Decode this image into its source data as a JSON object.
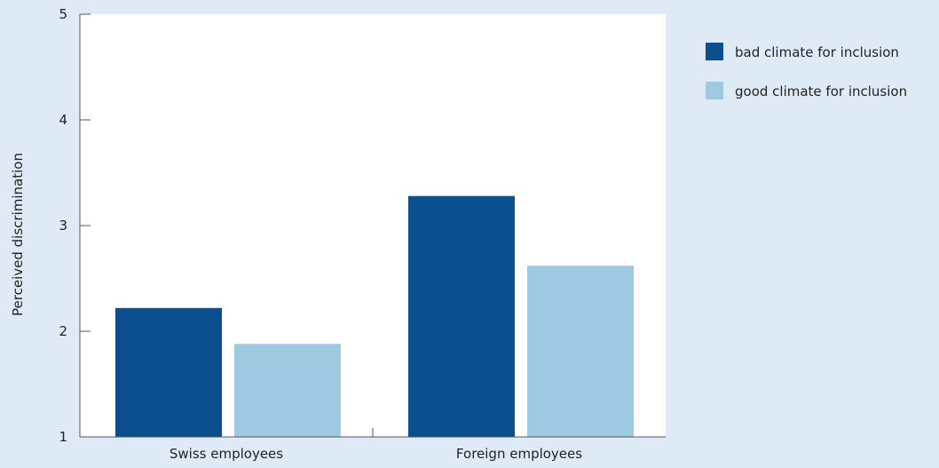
{
  "chart_data": {
    "type": "bar",
    "categories": [
      "Swiss employees",
      "Foreign employees"
    ],
    "series": [
      {
        "name": "bad climate for inclusion",
        "values": [
          2.22,
          3.28
        ],
        "color": "#0b4f8f"
      },
      {
        "name": "good climate for inclusion",
        "values": [
          1.88,
          2.62
        ],
        "color": "#9ecae1"
      }
    ],
    "ylabel": "Perceived discrimination",
    "xlabel": "",
    "ylim": [
      1,
      5
    ],
    "yticks": [
      1,
      2,
      3,
      4,
      5
    ],
    "grid": false,
    "legend": "top-right",
    "colors": {
      "background": "#deebf7",
      "plot_area": "#ffffff",
      "axis": "#555555"
    }
  }
}
